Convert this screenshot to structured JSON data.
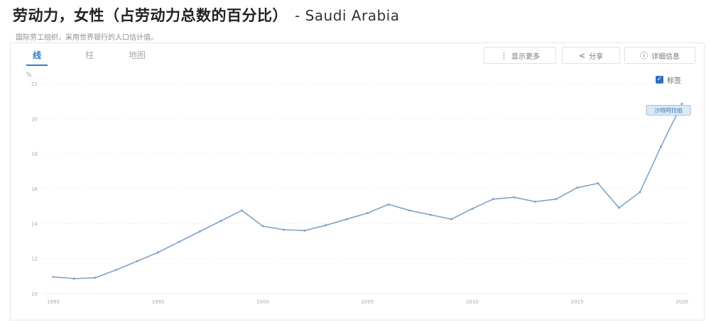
{
  "header": {
    "title": "劳动力，女性（占劳动力总数的百分比）",
    "country": "- Saudi Arabia",
    "subtitle": "国际劳工组织，采用世界银行的人口估计值。"
  },
  "tabs": [
    {
      "label": "线",
      "active": true
    },
    {
      "label": "柱",
      "active": false
    },
    {
      "label": "地图",
      "active": false
    }
  ],
  "toolbar": {
    "more_label": "显示更多",
    "share_label": "分享",
    "details_label": "详细信息",
    "more_icon": "vertical-dots-icon",
    "share_icon": "share-icon",
    "details_icon": "info-icon"
  },
  "legend_toggle": {
    "label": "标签",
    "checked": true
  },
  "colors": {
    "line": "#7fa3c9",
    "accent": "#2d7cc4"
  },
  "chart_data": {
    "type": "line",
    "title": "",
    "ylabel": "%",
    "xlabel": "",
    "ylim": [
      10,
      22
    ],
    "xlim": [
      1990,
      2020
    ],
    "yticks": [
      "10",
      "12",
      "14",
      "16",
      "18",
      "20",
      "22"
    ],
    "xticks": [
      "1990",
      "1995",
      "2000",
      "2005",
      "2010",
      "2015",
      "2020"
    ],
    "grid": true,
    "series": [
      {
        "name": "沙特阿拉伯",
        "x": [
          1990,
          1991,
          1992,
          1993,
          1994,
          1995,
          1996,
          1997,
          1998,
          1999,
          2000,
          2001,
          2002,
          2003,
          2004,
          2005,
          2006,
          2007,
          2008,
          2009,
          2010,
          2011,
          2012,
          2013,
          2014,
          2015,
          2016,
          2017,
          2018,
          2019,
          2020
        ],
        "values": [
          10.95,
          10.85,
          10.9,
          11.35,
          11.85,
          12.35,
          12.95,
          13.55,
          14.15,
          14.75,
          13.85,
          13.65,
          13.6,
          13.9,
          14.25,
          14.6,
          15.1,
          14.75,
          14.5,
          14.25,
          14.85,
          15.4,
          15.5,
          15.25,
          15.4,
          16.05,
          16.3,
          14.9,
          15.8,
          18.4,
          20.85
        ]
      }
    ]
  }
}
